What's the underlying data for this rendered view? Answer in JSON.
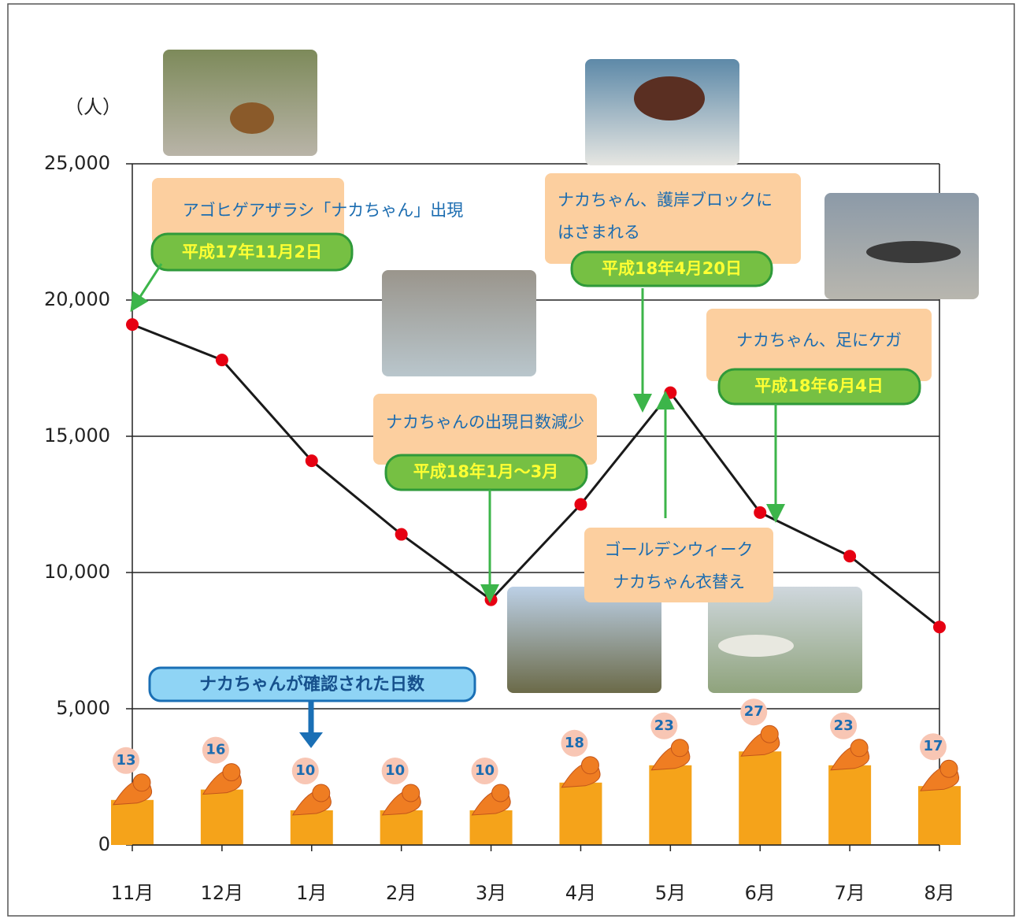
{
  "chart_data": {
    "type": "line",
    "unit_label": "（人）",
    "categories": [
      "11月",
      "12月",
      "1月",
      "2月",
      "3月",
      "4月",
      "5月",
      "6月",
      "7月",
      "8月"
    ],
    "values": [
      19100,
      17800,
      14100,
      11400,
      9000,
      12500,
      16600,
      12200,
      10600,
      8000
    ],
    "line_color": "#1a1a1a",
    "marker_color": "#e60012",
    "ylim": [
      0,
      25000
    ],
    "yticks": [
      0,
      {
        "value": 5000,
        "label": "5,000"
      },
      {
        "value": 10000,
        "label": "10,000"
      },
      {
        "value": 15000,
        "label": "15,000"
      },
      {
        "value": 20000,
        "label": "20,000"
      },
      {
        "value": 25000,
        "label": "25,000"
      }
    ],
    "grid": true,
    "days": {
      "label": "ナカちゃんが確認された日数",
      "values": [
        13,
        16,
        10,
        10,
        10,
        18,
        23,
        27,
        23,
        17
      ],
      "color": "#f5a31a"
    },
    "annotations": [
      {
        "lines": [
          "アゴヒゲアザラシ「ナカちゃん」出現"
        ],
        "date": "平成17年11月2日"
      },
      {
        "lines": [
          "ナカちゃん、護岸ブロックに",
          "はさまれる"
        ],
        "date": "平成18年4月20日"
      },
      {
        "lines": [
          "ナカちゃん、足にケガ"
        ],
        "date": "平成18年6月4日"
      },
      {
        "lines": [
          "ナカちゃんの出現日数減少"
        ],
        "date": "平成18年1月～3月"
      },
      {
        "lines": [
          "ゴールデンウィーク",
          "ナカちゃん衣替え"
        ]
      }
    ]
  }
}
